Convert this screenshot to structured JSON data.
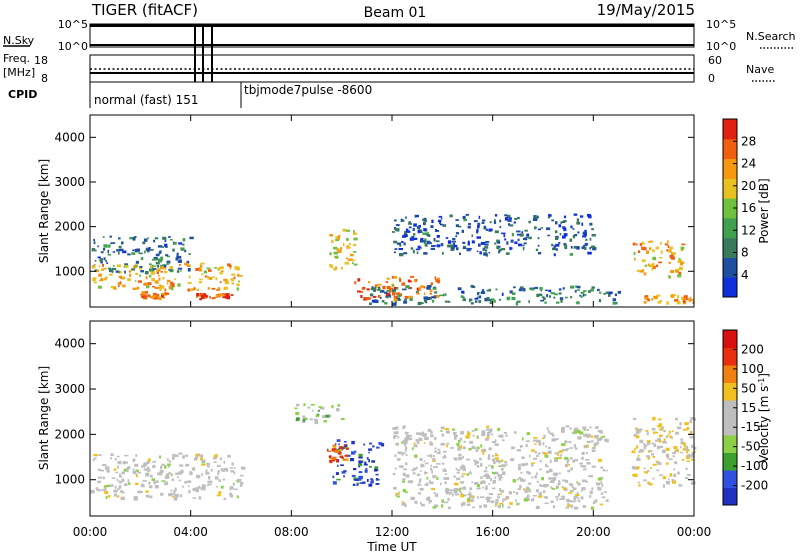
{
  "header": {
    "title": "TIGER (fitACF)",
    "beam": "Beam 01",
    "date": "19/May/2015"
  },
  "strips": {
    "nsky_label": "N.Sky",
    "nsearch_label": "N.Search",
    "left_ticks": [
      "10^5",
      "10^0"
    ],
    "right_ticks": [
      "10^5",
      "10^0"
    ],
    "freq_label_line1": "Freq.",
    "freq_label_line2": "[MHz]",
    "freq_ticks": [
      "18",
      "8"
    ],
    "nave_label": "Nave",
    "nave_ticks": [
      "60",
      "0"
    ],
    "cpid_label": "CPID",
    "cpid_mode1": "normal (fast) 151",
    "cpid_mode2": "tbjmode7pulse -8600"
  },
  "axes": {
    "ylabel": "Slant Range [km]",
    "xlabel": "Time UT",
    "yticks": [
      "1000",
      "2000",
      "3000",
      "4000"
    ],
    "xticks": [
      "00:00",
      "04:00",
      "08:00",
      "12:00",
      "16:00",
      "20:00",
      "00:00"
    ]
  },
  "power_scale": {
    "label": "Power [dB]",
    "ticks": [
      "4",
      "8",
      "12",
      "16",
      "20",
      "24",
      "28"
    ],
    "colors": [
      "#1030e0",
      "#1f4fa0",
      "#3a7a5c",
      "#3fa050",
      "#70c040",
      "#e8c020",
      "#f59a10",
      "#f06010",
      "#e02010"
    ]
  },
  "velocity_scale": {
    "label": "Velocity [m s",
    "label_sup": "-1",
    "label_end": "]",
    "ticks": [
      "200",
      "100",
      "50",
      "15",
      "-15",
      "-50",
      "-100",
      "-200"
    ],
    "colors": [
      "#2030c0",
      "#3050e0",
      "#3ca030",
      "#8cd048",
      "#bebebe",
      "#bebebe",
      "#f0c020",
      "#f08010",
      "#e83010",
      "#d81010"
    ]
  },
  "chart_data": [
    {
      "type": "heatmap",
      "panel": "power",
      "x_unit": "hours UT",
      "xlim": [
        0,
        24
      ],
      "ylim": [
        200,
        4500
      ],
      "cbar_range": [
        0,
        32
      ],
      "echo_regions": [
        {
          "t": [
            0,
            4
          ],
          "range": [
            1000,
            1800
          ],
          "value": 8
        },
        {
          "t": [
            0,
            6
          ],
          "range": [
            600,
            1200
          ],
          "value": 22
        },
        {
          "t": [
            2,
            3
          ],
          "range": [
            420,
            560
          ],
          "value": 26
        },
        {
          "t": [
            4.2,
            5.6
          ],
          "range": [
            400,
            520
          ],
          "value": 28
        },
        {
          "t": [
            9.5,
            10.5
          ],
          "range": [
            1000,
            2000
          ],
          "value": 20
        },
        {
          "t": [
            10.5,
            13.8
          ],
          "range": [
            400,
            900
          ],
          "value": 26
        },
        {
          "t": [
            11,
            21
          ],
          "range": [
            300,
            700
          ],
          "value": 8
        },
        {
          "t": [
            12,
            20
          ],
          "range": [
            1400,
            2300
          ],
          "value": 6
        },
        {
          "t": [
            21.5,
            23.5
          ],
          "range": [
            900,
            1700
          ],
          "value": 22
        },
        {
          "t": [
            22,
            24
          ],
          "range": [
            300,
            500
          ],
          "value": 24
        }
      ]
    },
    {
      "type": "heatmap",
      "panel": "velocity",
      "x_unit": "hours UT",
      "xlim": [
        0,
        24
      ],
      "ylim": [
        200,
        4500
      ],
      "cbar_range": [
        -250,
        250
      ],
      "echo_regions": [
        {
          "t": [
            0,
            6
          ],
          "range": [
            600,
            1600
          ],
          "value": 0
        },
        {
          "t": [
            9.6,
            11.6
          ],
          "range": [
            900,
            1900
          ],
          "value": -180
        },
        {
          "t": [
            9.4,
            10.2
          ],
          "range": [
            1400,
            1800
          ],
          "value": 150
        },
        {
          "t": [
            12,
            20.5
          ],
          "range": [
            400,
            2200
          ],
          "value": 0
        },
        {
          "t": [
            8,
            10
          ],
          "range": [
            2300,
            2700
          ],
          "value": -60
        },
        {
          "t": [
            21.5,
            24
          ],
          "range": [
            900,
            2400
          ],
          "value": 40
        }
      ]
    }
  ]
}
